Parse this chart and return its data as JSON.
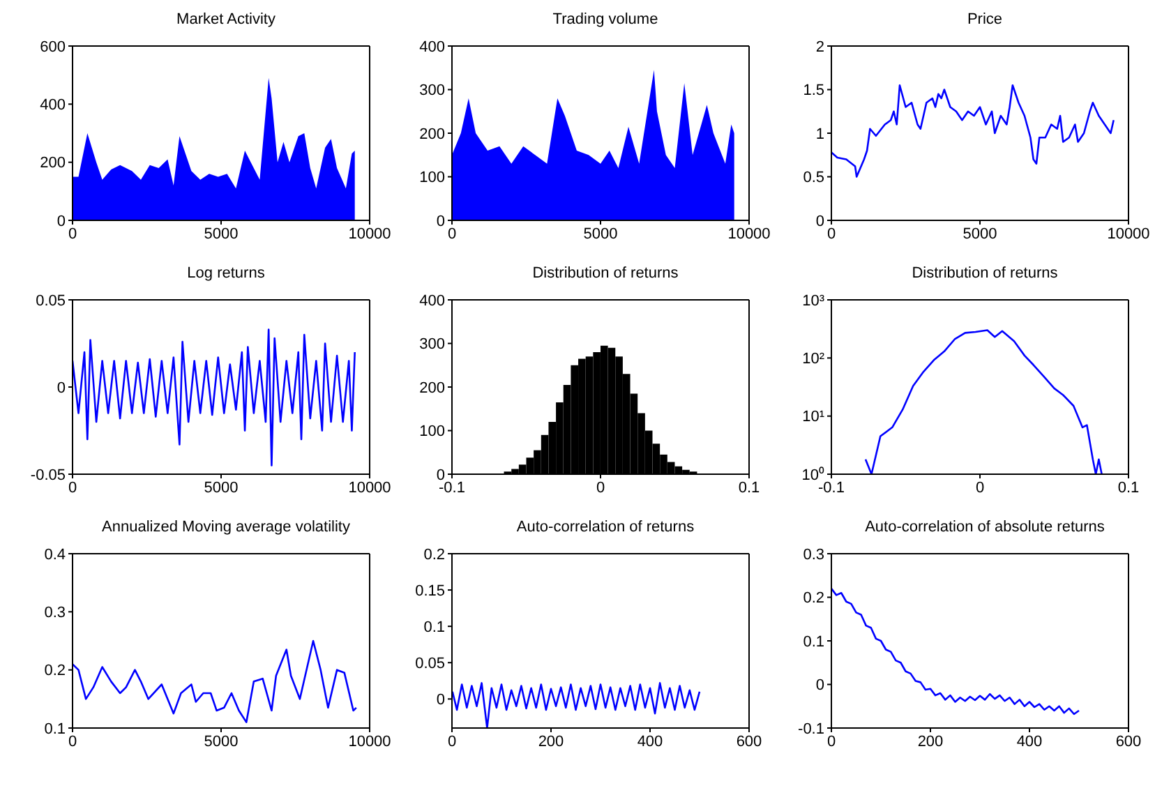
{
  "chart_data": [
    {
      "type": "area",
      "title": "Market Activity",
      "color": "#0000ff",
      "xlim": [
        0,
        10000
      ],
      "xticks": [
        0,
        5000,
        10000
      ],
      "ylim": [
        0,
        600
      ],
      "yticks": [
        0,
        200,
        400,
        600
      ],
      "x": [
        0,
        200,
        500,
        800,
        1000,
        1300,
        1600,
        2000,
        2300,
        2600,
        2900,
        3200,
        3400,
        3600,
        3800,
        4000,
        4300,
        4600,
        4900,
        5200,
        5500,
        5800,
        6000,
        6300,
        6600,
        6700,
        6900,
        7100,
        7300,
        7600,
        7800,
        8000,
        8200,
        8500,
        8700,
        8900,
        9200,
        9400,
        9500
      ],
      "values": [
        150,
        150,
        300,
        200,
        140,
        175,
        190,
        170,
        140,
        190,
        180,
        210,
        120,
        290,
        230,
        170,
        140,
        160,
        150,
        160,
        110,
        240,
        200,
        140,
        490,
        420,
        200,
        270,
        200,
        290,
        300,
        180,
        110,
        250,
        280,
        180,
        110,
        230,
        240
      ]
    },
    {
      "type": "area",
      "title": "Trading volume",
      "color": "#0000ff",
      "xlim": [
        0,
        10000
      ],
      "xticks": [
        0,
        5000,
        10000
      ],
      "ylim": [
        0,
        400
      ],
      "yticks": [
        0,
        100,
        200,
        300,
        400
      ],
      "x": [
        0,
        300,
        560,
        800,
        1200,
        1600,
        2000,
        2400,
        2800,
        3200,
        3550,
        3800,
        4200,
        4600,
        5000,
        5300,
        5600,
        5940,
        6300,
        6800,
        6900,
        7200,
        7500,
        7820,
        8100,
        8580,
        8800,
        9200,
        9400,
        9500
      ],
      "values": [
        150,
        200,
        280,
        200,
        160,
        170,
        130,
        170,
        150,
        130,
        280,
        240,
        160,
        150,
        130,
        160,
        120,
        215,
        130,
        345,
        250,
        150,
        120,
        315,
        150,
        265,
        200,
        130,
        220,
        200
      ]
    },
    {
      "type": "line",
      "title": "Price",
      "color": "#0000ff",
      "xlim": [
        0,
        10000
      ],
      "xticks": [
        0,
        5000,
        10000
      ],
      "ylim": [
        0,
        2
      ],
      "yticks": [
        0,
        0.5,
        1,
        1.5,
        2
      ],
      "x": [
        0,
        200,
        500,
        800,
        850,
        1100,
        1200,
        1300,
        1500,
        1800,
        2000,
        2100,
        2200,
        2300,
        2500,
        2700,
        2900,
        3000,
        3200,
        3400,
        3500,
        3600,
        3700,
        3800,
        4000,
        4200,
        4400,
        4600,
        4800,
        5000,
        5200,
        5400,
        5500,
        5700,
        5900,
        6000,
        6100,
        6300,
        6500,
        6700,
        6800,
        6900,
        7000,
        7200,
        7400,
        7600,
        7700,
        7800,
        8000,
        8200,
        8300,
        8500,
        8700,
        8800,
        9000,
        9200,
        9400,
        9500
      ],
      "values": [
        0.78,
        0.72,
        0.7,
        0.62,
        0.5,
        0.7,
        0.8,
        1.05,
        0.97,
        1.1,
        1.15,
        1.25,
        1.1,
        1.55,
        1.3,
        1.35,
        1.1,
        1.05,
        1.35,
        1.4,
        1.3,
        1.45,
        1.4,
        1.5,
        1.3,
        1.25,
        1.15,
        1.25,
        1.2,
        1.3,
        1.1,
        1.25,
        1.0,
        1.2,
        1.1,
        1.3,
        1.55,
        1.35,
        1.2,
        0.95,
        0.7,
        0.65,
        0.95,
        0.95,
        1.1,
        1.05,
        1.2,
        0.9,
        0.95,
        1.1,
        0.9,
        1.0,
        1.25,
        1.35,
        1.2,
        1.1,
        1.0,
        1.15
      ]
    },
    {
      "type": "line",
      "title": "Log returns",
      "color": "#0000ff",
      "xlim": [
        0,
        10000
      ],
      "xticks": [
        0,
        5000,
        10000
      ],
      "ylim": [
        -0.05,
        0.05
      ],
      "yticks": [
        -0.05,
        0,
        0.05
      ],
      "x": [
        0,
        200,
        400,
        500,
        600,
        800,
        1000,
        1200,
        1400,
        1600,
        1800,
        2000,
        2200,
        2400,
        2600,
        2800,
        3000,
        3200,
        3400,
        3600,
        3700,
        3900,
        4100,
        4300,
        4500,
        4700,
        4900,
        5100,
        5300,
        5500,
        5700,
        5800,
        5900,
        6100,
        6300,
        6500,
        6600,
        6700,
        6800,
        7000,
        7200,
        7400,
        7600,
        7700,
        7800,
        8000,
        8200,
        8400,
        8500,
        8700,
        8900,
        9100,
        9300,
        9400,
        9500
      ],
      "values": [
        0.015,
        -0.015,
        0.02,
        -0.03,
        0.027,
        -0.02,
        0.015,
        -0.015,
        0.015,
        -0.018,
        0.015,
        -0.015,
        0.014,
        -0.015,
        0.016,
        -0.017,
        0.015,
        -0.015,
        0.017,
        -0.033,
        0.026,
        -0.02,
        0.015,
        -0.015,
        0.015,
        -0.016,
        0.017,
        -0.015,
        0.013,
        -0.013,
        0.02,
        -0.025,
        0.023,
        -0.015,
        0.015,
        -0.02,
        0.033,
        -0.045,
        0.028,
        -0.02,
        0.015,
        -0.015,
        0.02,
        -0.03,
        0.03,
        -0.018,
        0.015,
        -0.025,
        0.025,
        -0.02,
        0.018,
        -0.02,
        0.015,
        -0.025,
        0.02
      ]
    },
    {
      "type": "histogram",
      "title": "Distribution of returns",
      "color": "#000000",
      "xlim": [
        -0.1,
        0.1
      ],
      "xticks": [
        -0.1,
        0,
        0.1
      ],
      "ylim": [
        0,
        400
      ],
      "yticks": [
        0,
        100,
        200,
        300,
        400
      ],
      "bins": [
        -0.1,
        -0.095,
        -0.09,
        -0.085,
        -0.08,
        -0.075,
        -0.07,
        -0.065,
        -0.06,
        -0.055,
        -0.05,
        -0.045,
        -0.04,
        -0.035,
        -0.03,
        -0.025,
        -0.02,
        -0.015,
        -0.01,
        -0.005,
        0,
        0.005,
        0.01,
        0.015,
        0.02,
        0.025,
        0.03,
        0.035,
        0.04,
        0.045,
        0.05,
        0.055,
        0.06,
        0.065,
        0.07,
        0.075,
        0.08,
        0.085,
        0.09,
        0.095,
        0.1
      ],
      "values": [
        0,
        0,
        0,
        0,
        1,
        null,
        null,
        6,
        12,
        22,
        38,
        55,
        90,
        120,
        165,
        205,
        250,
        265,
        270,
        280,
        295,
        290,
        270,
        230,
        185,
        140,
        100,
        70,
        45,
        28,
        18,
        10,
        6,
        null,
        null,
        1,
        1,
        0,
        0,
        0
      ]
    },
    {
      "type": "line",
      "title": "Distribution of returns",
      "color": "#0000ff",
      "log": "y",
      "xlim": [
        -0.1,
        0.1
      ],
      "xticks": [
        -0.1,
        0,
        0.1
      ],
      "ylim": [
        1,
        1000
      ],
      "yticks": [
        {
          "value": 1,
          "label": "10⁰"
        },
        {
          "value": 10,
          "label": "10¹"
        },
        {
          "value": 100,
          "label": "10²"
        },
        {
          "value": 1000,
          "label": "10³"
        }
      ],
      "x": [
        -0.077,
        -0.073,
        -0.067,
        -0.059,
        -0.052,
        -0.045,
        -0.038,
        -0.031,
        -0.024,
        -0.017,
        -0.01,
        -0.003,
        0.005,
        0.01,
        0.015,
        0.023,
        0.03,
        0.036,
        0.043,
        0.05,
        0.056,
        0.063,
        0.069,
        0.072,
        0.076,
        0.078,
        0.08,
        0.082
      ],
      "values": [
        1.8,
        1,
        4.5,
        6.4,
        13,
        33,
        58,
        92,
        130,
        210,
        270,
        280,
        300,
        230,
        290,
        195,
        110,
        76,
        48,
        30,
        23,
        15,
        6.4,
        7,
        1.8,
        1,
        1.8,
        1
      ]
    },
    {
      "type": "line",
      "title": "Annualized Moving average volatility",
      "color": "#0000ff",
      "xlim": [
        0,
        10000
      ],
      "xticks": [
        0,
        5000,
        10000
      ],
      "ylim": [
        0.1,
        0.4
      ],
      "yticks": [
        0.1,
        0.2,
        0.3,
        0.4
      ],
      "x": [
        0,
        200,
        450,
        700,
        1000,
        1300,
        1600,
        1800,
        2100,
        2300,
        2550,
        3000,
        3400,
        3650,
        4000,
        4150,
        4400,
        4650,
        4850,
        5100,
        5350,
        5600,
        5850,
        6100,
        6400,
        6700,
        6850,
        7200,
        7350,
        7650,
        8100,
        8350,
        8600,
        8900,
        9150,
        9450,
        9550
      ],
      "values": [
        0.21,
        0.2,
        0.15,
        0.17,
        0.205,
        0.18,
        0.16,
        0.17,
        0.2,
        0.18,
        0.15,
        0.175,
        0.125,
        0.16,
        0.175,
        0.145,
        0.16,
        0.16,
        0.13,
        0.135,
        0.16,
        0.13,
        0.11,
        0.18,
        0.185,
        0.13,
        0.19,
        0.235,
        0.19,
        0.15,
        0.25,
        0.2,
        0.135,
        0.2,
        0.195,
        0.13,
        0.135
      ]
    },
    {
      "type": "line",
      "title": "Auto-correlation of returns",
      "color": "#0000ff",
      "xlim": [
        0,
        600
      ],
      "xticks": [
        0,
        200,
        400,
        600
      ],
      "ylim": [
        -0.04,
        0.2
      ],
      "yticks": [
        0,
        0.05,
        0.1,
        0.15,
        0.2
      ],
      "x": [
        1,
        10,
        20,
        30,
        40,
        50,
        60,
        71,
        80,
        90,
        100,
        110,
        120,
        130,
        140,
        150,
        160,
        170,
        180,
        190,
        200,
        210,
        220,
        230,
        240,
        250,
        260,
        270,
        280,
        290,
        300,
        310,
        320,
        330,
        340,
        350,
        360,
        370,
        380,
        390,
        400,
        410,
        420,
        430,
        440,
        450,
        460,
        470,
        480,
        490,
        500
      ],
      "values": [
        0.01,
        -0.015,
        0.02,
        -0.012,
        0.018,
        -0.01,
        0.022,
        -0.04,
        0.015,
        -0.012,
        0.02,
        -0.015,
        0.012,
        -0.01,
        0.018,
        -0.013,
        0.015,
        -0.012,
        0.02,
        -0.015,
        0.014,
        -0.01,
        0.016,
        -0.012,
        0.02,
        -0.015,
        0.015,
        -0.01,
        0.018,
        -0.014,
        0.02,
        -0.012,
        0.016,
        -0.015,
        0.015,
        -0.01,
        0.018,
        -0.015,
        0.02,
        -0.012,
        0.015,
        -0.02,
        0.022,
        -0.012,
        0.015,
        -0.015,
        0.018,
        -0.012,
        0.012,
        -0.015,
        0.01
      ]
    },
    {
      "type": "line",
      "title": "Auto-correlation of absolute returns",
      "color": "#0000ff",
      "xlim": [
        0,
        600
      ],
      "xticks": [
        0,
        200,
        400,
        600
      ],
      "ylim": [
        -0.1,
        0.3
      ],
      "yticks": [
        -0.1,
        0,
        0.1,
        0.2,
        0.3
      ],
      "x": [
        0,
        10,
        20,
        30,
        40,
        50,
        60,
        70,
        80,
        90,
        100,
        110,
        120,
        130,
        140,
        150,
        160,
        170,
        180,
        190,
        200,
        210,
        220,
        230,
        240,
        250,
        260,
        270,
        280,
        290,
        300,
        310,
        320,
        330,
        340,
        350,
        360,
        370,
        380,
        390,
        400,
        410,
        420,
        430,
        440,
        450,
        460,
        470,
        480,
        490,
        500
      ],
      "values": [
        0.22,
        0.205,
        0.21,
        0.19,
        0.185,
        0.165,
        0.16,
        0.135,
        0.13,
        0.105,
        0.1,
        0.08,
        0.075,
        0.055,
        0.05,
        0.03,
        0.025,
        0.008,
        0.005,
        -0.012,
        -0.01,
        -0.025,
        -0.02,
        -0.035,
        -0.025,
        -0.04,
        -0.03,
        -0.038,
        -0.028,
        -0.036,
        -0.026,
        -0.035,
        -0.022,
        -0.033,
        -0.025,
        -0.038,
        -0.03,
        -0.045,
        -0.035,
        -0.05,
        -0.04,
        -0.052,
        -0.045,
        -0.058,
        -0.05,
        -0.06,
        -0.05,
        -0.065,
        -0.055,
        -0.068,
        -0.06
      ]
    }
  ]
}
